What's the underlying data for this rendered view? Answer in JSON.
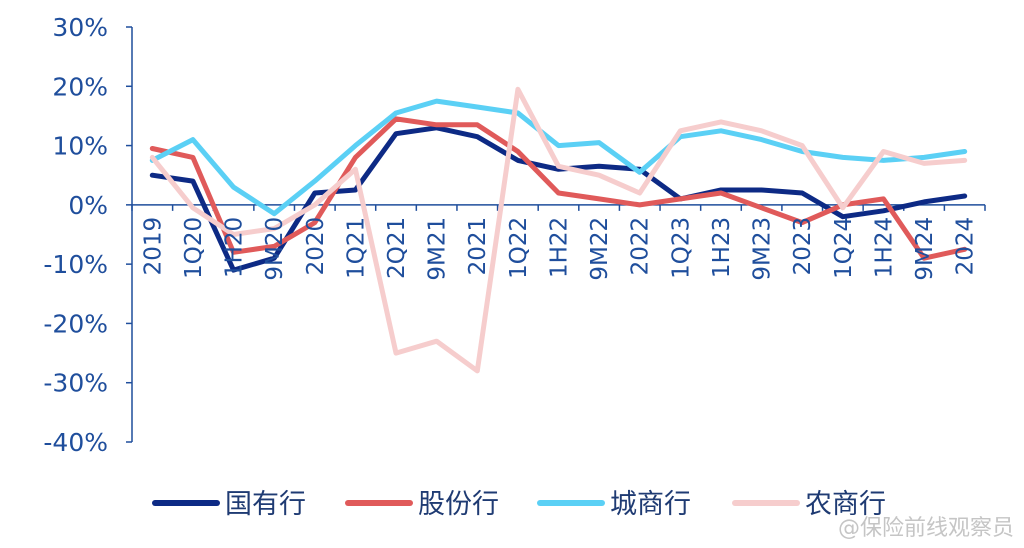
{
  "chart_data": {
    "type": "line",
    "categories": [
      "2019",
      "1Q20",
      "1H20",
      "9M20",
      "2020",
      "1Q21",
      "2Q21",
      "9M21",
      "2021",
      "1Q22",
      "1H22",
      "9M22",
      "2022",
      "1Q23",
      "1H23",
      "9M23",
      "2023",
      "1Q24",
      "1H24",
      "9M24",
      "2024"
    ],
    "yticks": [
      "30%",
      "20%",
      "10%",
      "0%",
      "-10%",
      "-20%",
      "-30%",
      "-40%"
    ],
    "ylim": [
      -40,
      30
    ],
    "grid": false,
    "legend_position": "bottom",
    "series": [
      {
        "name": "国有行",
        "color": "#0d2a85",
        "values": [
          5,
          4,
          -11,
          -9,
          2,
          2.5,
          12,
          13,
          11.5,
          7.5,
          6,
          6.5,
          6,
          1,
          2.5,
          2.5,
          2,
          -2,
          -1,
          0.5,
          1.5
        ]
      },
      {
        "name": "股份行",
        "color": "#e05a5a",
        "values": [
          9.5,
          8,
          -8,
          -7,
          -3,
          8,
          14.5,
          13.5,
          13.5,
          9,
          2,
          1,
          0,
          1,
          2,
          -0.5,
          -3,
          0,
          1,
          -9,
          -7.5
        ]
      },
      {
        "name": "城商行",
        "color": "#5bd0f5",
        "values": [
          7.5,
          11,
          3,
          -1.5,
          4,
          10,
          15.5,
          17.5,
          16.5,
          15.5,
          10,
          10.5,
          5.5,
          11.5,
          12.5,
          11,
          9,
          8,
          7.5,
          8,
          9
        ]
      },
      {
        "name": "农商行",
        "color": "#f6cdcd",
        "values": [
          8,
          -0.5,
          -5,
          -4,
          0,
          6,
          -25,
          -23,
          -28,
          19.5,
          6.5,
          5,
          2,
          12.5,
          14,
          12.5,
          10,
          -0.5,
          9,
          7,
          7.5
        ]
      }
    ]
  },
  "watermark": "@保险前线观察员"
}
